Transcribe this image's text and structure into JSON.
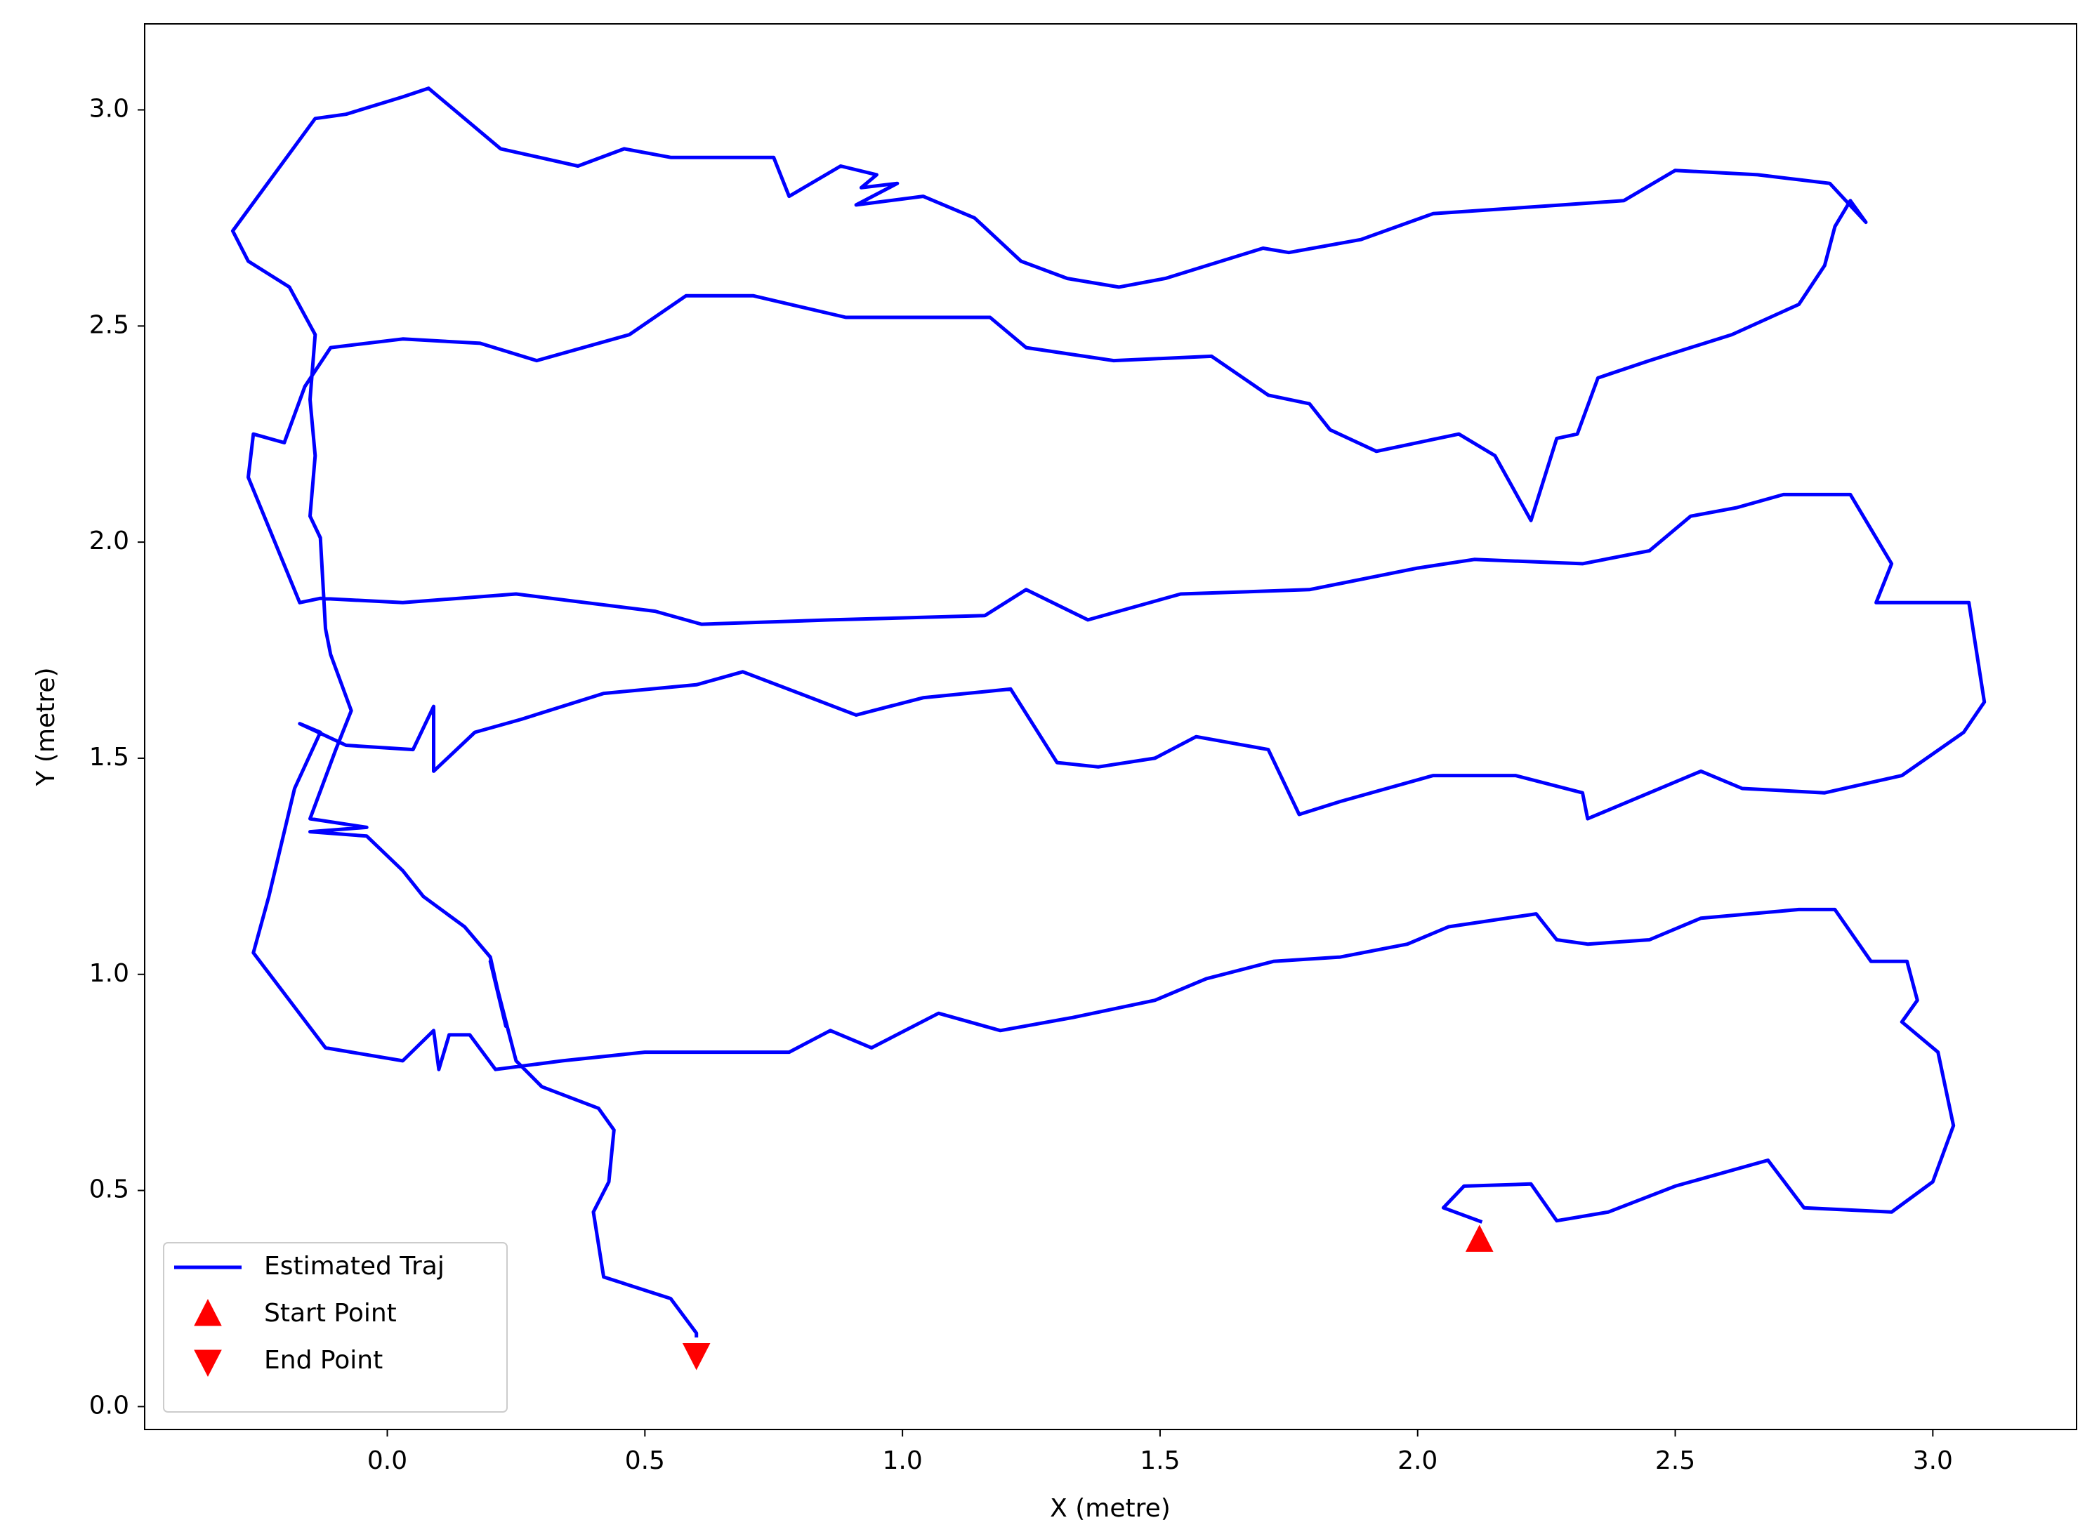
{
  "chart_data": {
    "type": "line",
    "xlabel": "X (metre)",
    "ylabel": "Y (metre)",
    "xlim": [
      -0.471,
      3.279
    ],
    "ylim": [
      -0.053,
      3.199
    ],
    "xticks": [
      {
        "value": 0,
        "label": "0.0"
      },
      0.5,
      {
        "value": 1,
        "label": "1.0"
      },
      1.5,
      {
        "value": 2,
        "label": "2.0"
      },
      2.5,
      {
        "value": 3,
        "label": "3.0"
      }
    ],
    "yticks": [
      {
        "value": 0,
        "label": "0.0"
      },
      0.5,
      {
        "value": 1,
        "label": "1.0"
      },
      1.5,
      {
        "value": 2,
        "label": "2.0"
      },
      2.5,
      {
        "value": 3,
        "label": "3.0"
      }
    ],
    "grid": false,
    "legend": "lower left",
    "series": [
      {
        "name": "Estimated Traj",
        "type": "line",
        "color": "#0000ff",
        "x": [
          2.125,
          2.05,
          2.09,
          2.22,
          2.27,
          2.37,
          2.5,
          2.68,
          2.75,
          2.92,
          3.0,
          3.04,
          3.01,
          2.94,
          2.97,
          2.95,
          2.88,
          2.81,
          2.74,
          2.55,
          2.45,
          2.33,
          2.27,
          2.23,
          2.06,
          1.98,
          1.85,
          1.72,
          1.59,
          1.49,
          1.33,
          1.19,
          1.07,
          0.94,
          0.86,
          0.78,
          0.65,
          0.5,
          0.34,
          0.21,
          0.16,
          0.12,
          0.1,
          0.09,
          0.03,
          -0.12,
          -0.26,
          -0.23,
          -0.18,
          -0.13,
          -0.17,
          -0.08,
          0.05,
          0.09,
          0.09,
          0.17,
          0.26,
          0.42,
          0.6,
          0.69,
          0.91,
          1.04,
          1.21,
          1.3,
          1.38,
          1.49,
          1.57,
          1.71,
          1.77,
          1.85,
          2.03,
          2.19,
          2.32,
          2.33,
          2.45,
          2.55,
          2.63,
          2.79,
          2.94,
          3.06,
          3.1,
          3.07,
          2.89,
          2.92,
          2.84,
          2.71,
          2.62,
          2.53,
          2.45,
          2.32,
          2.11,
          2.0,
          1.79,
          1.54,
          1.36,
          1.24,
          1.16,
          0.86,
          0.61,
          0.52,
          0.25,
          0.03,
          -0.13,
          -0.17,
          -0.27,
          -0.26,
          -0.2,
          -0.16,
          -0.11,
          0.03,
          0.18,
          0.29,
          0.47,
          0.58,
          0.71,
          0.89,
          1.17,
          1.24,
          1.41,
          1.6,
          1.71,
          1.79,
          1.83,
          1.92,
          2.08,
          2.15,
          2.22,
          2.27,
          2.31,
          2.35,
          2.45,
          2.61,
          2.74,
          2.79,
          2.81,
          2.84,
          2.87,
          2.8,
          2.66,
          2.5,
          2.4,
          2.28,
          2.03,
          1.89,
          1.75,
          1.7,
          1.51,
          1.42,
          1.32,
          1.23,
          1.14,
          1.04,
          0.91,
          0.99,
          0.92,
          0.95,
          0.88,
          0.78,
          0.75,
          0.55,
          0.46,
          0.37,
          0.22,
          0.08,
          0.03,
          -0.08,
          -0.14,
          -0.3,
          -0.27,
          -0.19,
          -0.14,
          -0.15,
          -0.14,
          -0.15,
          -0.13,
          -0.12,
          -0.11,
          -0.07,
          -0.1,
          -0.15,
          -0.04,
          -0.15,
          -0.04,
          0.03,
          0.07,
          0.15,
          0.2,
          0.23,
          0.2,
          0.25,
          0.3,
          0.41,
          0.44,
          0.43,
          0.4,
          0.42,
          0.55,
          0.6,
          0.6
        ],
        "values": [
          0.427,
          0.46,
          0.51,
          0.515,
          0.43,
          0.45,
          0.51,
          0.57,
          0.46,
          0.45,
          0.52,
          0.65,
          0.82,
          0.89,
          0.94,
          1.03,
          1.03,
          1.15,
          1.15,
          1.13,
          1.08,
          1.07,
          1.08,
          1.14,
          1.11,
          1.07,
          1.04,
          1.03,
          0.99,
          0.94,
          0.9,
          0.87,
          0.91,
          0.83,
          0.87,
          0.82,
          0.82,
          0.82,
          0.8,
          0.78,
          0.86,
          0.86,
          0.78,
          0.87,
          0.8,
          0.83,
          1.05,
          1.18,
          1.43,
          1.56,
          1.58,
          1.53,
          1.52,
          1.62,
          1.47,
          1.56,
          1.59,
          1.65,
          1.67,
          1.7,
          1.6,
          1.64,
          1.66,
          1.49,
          1.48,
          1.5,
          1.55,
          1.52,
          1.37,
          1.4,
          1.46,
          1.46,
          1.42,
          1.36,
          1.42,
          1.47,
          1.43,
          1.42,
          1.46,
          1.56,
          1.63,
          1.86,
          1.86,
          1.95,
          2.11,
          2.11,
          2.08,
          2.06,
          1.98,
          1.95,
          1.96,
          1.94,
          1.89,
          1.88,
          1.82,
          1.89,
          1.83,
          1.82,
          1.81,
          1.84,
          1.88,
          1.86,
          1.87,
          1.86,
          2.15,
          2.25,
          2.23,
          2.36,
          2.45,
          2.47,
          2.46,
          2.42,
          2.48,
          2.57,
          2.57,
          2.52,
          2.52,
          2.45,
          2.42,
          2.43,
          2.34,
          2.32,
          2.26,
          2.21,
          2.25,
          2.2,
          2.05,
          2.24,
          2.25,
          2.38,
          2.42,
          2.48,
          2.55,
          2.64,
          2.73,
          2.79,
          2.74,
          2.83,
          2.85,
          2.86,
          2.79,
          2.78,
          2.76,
          2.7,
          2.67,
          2.68,
          2.61,
          2.59,
          2.61,
          2.65,
          2.75,
          2.8,
          2.78,
          2.83,
          2.82,
          2.85,
          2.87,
          2.8,
          2.89,
          2.89,
          2.91,
          2.87,
          2.91,
          3.05,
          3.03,
          2.99,
          2.98,
          2.72,
          2.65,
          2.59,
          2.48,
          2.33,
          2.2,
          2.06,
          2.01,
          1.8,
          1.74,
          1.61,
          1.52,
          1.36,
          1.34,
          1.33,
          1.32,
          1.24,
          1.18,
          1.11,
          1.04,
          0.88,
          1.03,
          0.8,
          0.74,
          0.69,
          0.64,
          0.52,
          0.45,
          0.3,
          0.25,
          0.17,
          0.16
        ]
      },
      {
        "name": "Start Point",
        "type": "scatter",
        "marker": "triangle-up",
        "color": "#ff0000",
        "x": [
          2.12
        ],
        "values": [
          0.385
        ]
      },
      {
        "name": "End Point",
        "type": "scatter",
        "marker": "triangle-down",
        "color": "#ff0000",
        "x": [
          0.6
        ],
        "values": [
          0.12
        ]
      }
    ]
  }
}
